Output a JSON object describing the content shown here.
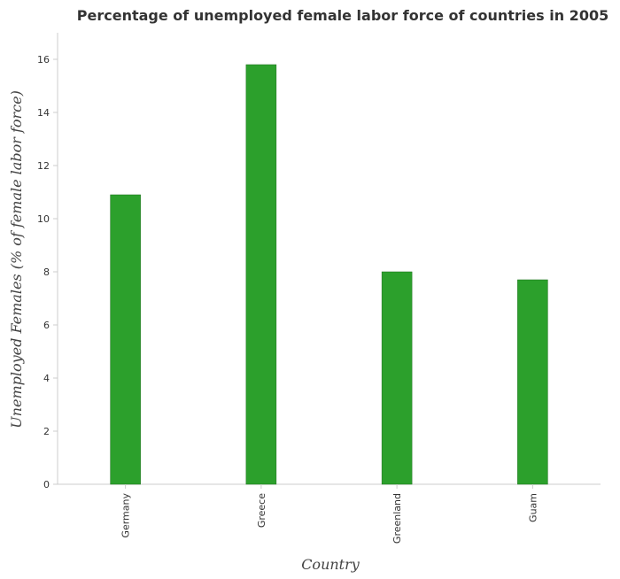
{
  "chart_data": {
    "type": "bar",
    "title": "Percentage of unemployed female labor force of countries in 2005",
    "xlabel": "Country",
    "ylabel": "Unemployed Females (% of female labor force)",
    "categories": [
      "Germany",
      "Greece",
      "Greenland",
      "Guam"
    ],
    "values": [
      10.9,
      15.8,
      8.0,
      7.7
    ],
    "ylim": [
      0,
      17
    ],
    "yticks": [
      "0",
      "2",
      "4",
      "6",
      "8",
      "10",
      "12",
      "14",
      "16"
    ],
    "grid": false,
    "legend": "none",
    "colors": {
      "bar_fill": "#2ca02c",
      "bar_stroke": "#1a6e1a",
      "axis": "#cccccc",
      "text": "#333333"
    }
  }
}
